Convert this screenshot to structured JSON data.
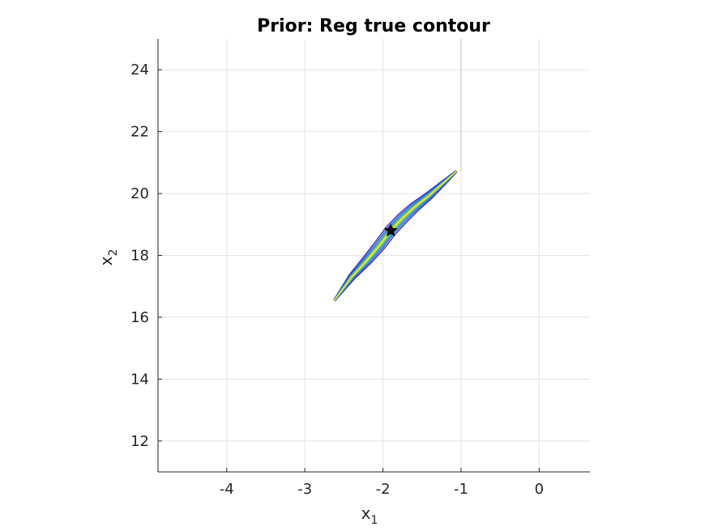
{
  "chart_data": {
    "type": "line",
    "title": "Prior: Reg true contour",
    "xlabel": {
      "base": "x",
      "sub": "1"
    },
    "ylabel": {
      "base": "x",
      "sub": "2"
    },
    "xlim": [
      -4.88,
      0.65
    ],
    "ylim": [
      11,
      25
    ],
    "xticks": [
      -4,
      -3,
      -2,
      -1,
      0
    ],
    "yticks": [
      12,
      14,
      16,
      18,
      20,
      22,
      24
    ],
    "xtick_labels": [
      "-4",
      "-3",
      "-2",
      "-1",
      "0"
    ],
    "ytick_labels": [
      "12",
      "14",
      "16",
      "18",
      "20",
      "22",
      "24"
    ],
    "grid": true,
    "vertical_line": {
      "x": -1.0,
      "y_range": [
        20.7,
        25
      ],
      "color": "#c8c8c8"
    },
    "contour_center": {
      "x": -1.9,
      "y": 18.8
    },
    "contour_ridge": {
      "x": [
        -2.62,
        -2.4,
        -2.2,
        -2.05,
        -1.9,
        -1.75,
        -1.6,
        -1.4,
        -1.2,
        -1.06
      ],
      "y": [
        16.55,
        17.3,
        17.85,
        18.3,
        18.8,
        19.2,
        19.55,
        19.95,
        20.4,
        20.72
      ]
    },
    "contour_levels": [
      {
        "level": 1,
        "color": "#3e26a8",
        "half_width": 0.075
      },
      {
        "level": 2,
        "color": "#2f55f0",
        "half_width": 0.055
      },
      {
        "level": 3,
        "color": "#1f98dc",
        "half_width": 0.038
      },
      {
        "level": 4,
        "color": "#2db6b0",
        "half_width": 0.024
      },
      {
        "level": 5,
        "color": "#a8c63a",
        "half_width": 0.012
      },
      {
        "level": 6,
        "color": "#f2e21c",
        "half_width": 0.005
      }
    ],
    "marker": {
      "x": -1.9,
      "y": 18.8,
      "symbol": "star",
      "color": "#000000"
    }
  }
}
